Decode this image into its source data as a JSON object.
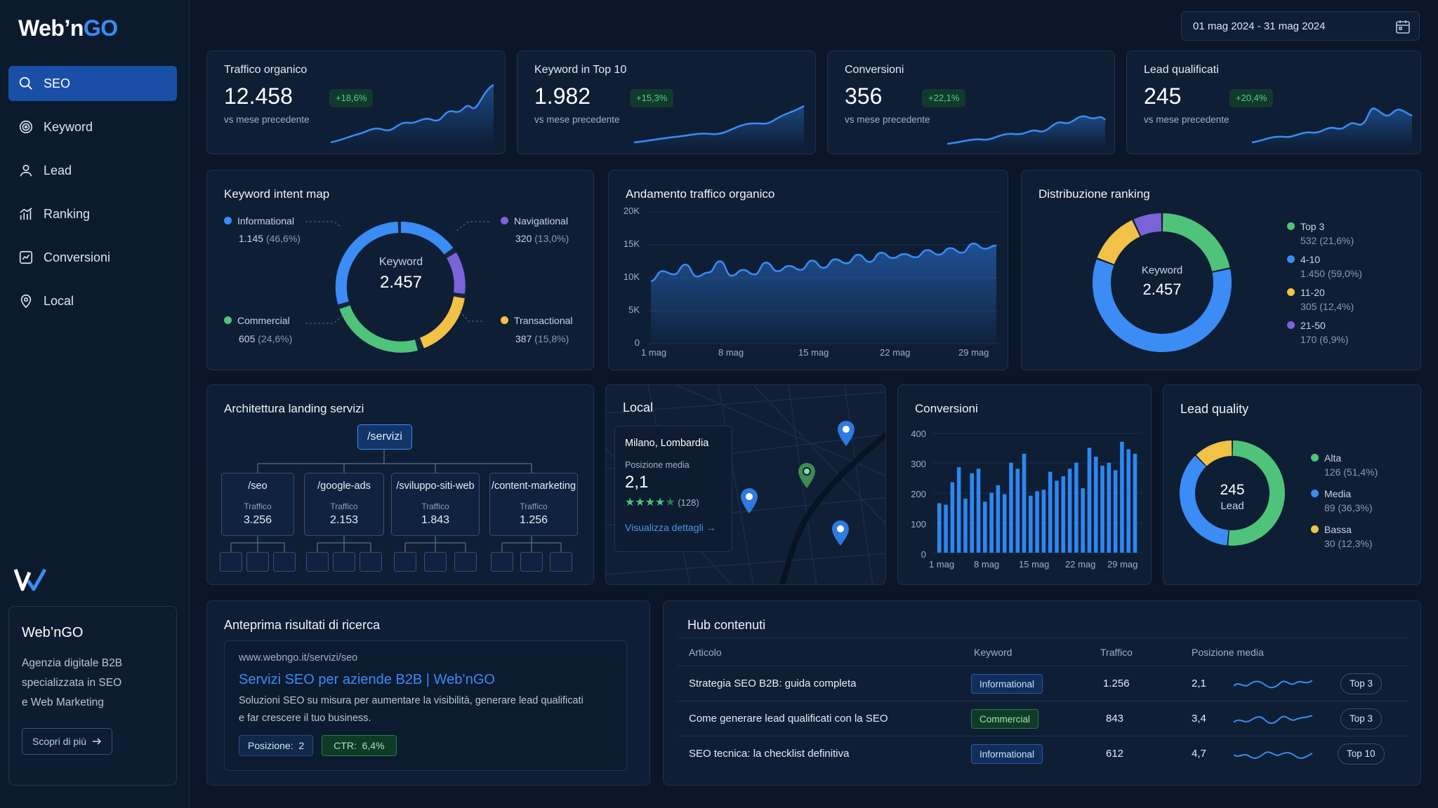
{
  "app": {
    "logo_main": "Web’n",
    "logo_accent": "GO"
  },
  "sidebar": {
    "items": [
      {
        "label": "SEO",
        "icon": "search-icon",
        "active": true
      },
      {
        "label": "Keyword",
        "icon": "target-icon"
      },
      {
        "label": "Lead",
        "icon": "user-icon"
      },
      {
        "label": "Ranking",
        "icon": "bar-chart-icon"
      },
      {
        "label": "Conversioni",
        "icon": "chart-box-icon"
      },
      {
        "label": "Local",
        "icon": "map-pin-icon"
      }
    ],
    "brand_title": "Web’nGO",
    "brand_desc": [
      "Agenzia digitale B2B",
      "specializzata in SEO",
      "e Web Marketing"
    ],
    "brand_button": "Scopri di più"
  },
  "date_range": "01 mag 2024 - 31 mag 2024",
  "kpis": [
    {
      "label": "Traffico organico",
      "value": "12.458",
      "delta": "+18,6%",
      "sub": "vs mese precedente"
    },
    {
      "label": "Keyword in Top 10",
      "value": "1.982",
      "delta": "+15,3%",
      "sub": "vs mese precedente"
    },
    {
      "label": "Conversioni",
      "value": "356",
      "delta": "+22,1%",
      "sub": "vs mese precedente"
    },
    {
      "label": "Lead qualificati",
      "value": "245",
      "delta": "+20,4%",
      "sub": "vs mese precedente"
    }
  ],
  "intent": {
    "title": "Keyword intent map",
    "center_label": "Keyword",
    "center_value": "2.457",
    "items": [
      {
        "name": "Informational",
        "value": "1.145",
        "pct": "(46,6%)",
        "color": "#3b8cf5"
      },
      {
        "name": "Navigational",
        "value": "320",
        "pct": "(13,0%)",
        "color": "#7a63d9"
      },
      {
        "name": "Commercial",
        "value": "605",
        "pct": "(24,6%)",
        "color": "#4fc37a"
      },
      {
        "name": "Transactional",
        "value": "387",
        "pct": "(15,8%)",
        "color": "#f1c246"
      }
    ]
  },
  "traffic": {
    "title": "Andamento traffico organico",
    "yticks": [
      "20K",
      "15K",
      "10K",
      "5K",
      "0"
    ],
    "xticks": [
      "1 mag",
      "8 mag",
      "15 mag",
      "22 mag",
      "29 mag"
    ]
  },
  "ranking": {
    "title": "Distribuzione ranking",
    "center_label": "Keyword",
    "center_value": "2.457",
    "items": [
      {
        "name": "Top 3",
        "detail": "532 (21,6%)",
        "color": "#4fc37a",
        "value": 532
      },
      {
        "name": "4-10",
        "detail": "1.450 (59,0%)",
        "color": "#3b8cf5",
        "value": 1450
      },
      {
        "name": "11-20",
        "detail": "305 (12,4%)",
        "color": "#f1c246",
        "value": 305
      },
      {
        "name": "21-50",
        "detail": "170 (6,9%)",
        "color": "#7a63d9",
        "value": 170
      }
    ]
  },
  "architecture": {
    "title": "Architettura landing servizi",
    "root": "/servizi",
    "children": [
      {
        "name": "/seo",
        "label": "Traffico",
        "value": "3.256"
      },
      {
        "name": "/google-ads",
        "label": "Traffico",
        "value": "2.153"
      },
      {
        "name": "/sviluppo-siti-web",
        "label": "Traffico",
        "value": "1.843"
      },
      {
        "name": "/content-marketing",
        "label": "Traffico",
        "value": "1.256"
      }
    ]
  },
  "local": {
    "title": "Local",
    "city": "Milano, Lombardia",
    "pos_label": "Posizione media",
    "pos_value": "2,1",
    "rating_count": "(128)",
    "rating": 4.5,
    "link": "Visualizza dettagli"
  },
  "conversions": {
    "title": "Conversioni",
    "yticks": [
      "400",
      "300",
      "200",
      "100",
      "0"
    ],
    "xticks": [
      "1 mag",
      "8 mag",
      "15 mag",
      "22 mag",
      "29 mag"
    ]
  },
  "chart_data": [
    {
      "type": "area",
      "title": "Andamento traffico organico",
      "ylim": [
        0,
        20000
      ],
      "x": [
        "1 mag",
        "2",
        "3",
        "4",
        "5",
        "6",
        "7",
        "8 mag",
        "9",
        "10",
        "11",
        "12",
        "13",
        "14",
        "15 mag",
        "16",
        "17",
        "18",
        "19",
        "20",
        "21",
        "22 mag",
        "23",
        "24",
        "25",
        "26",
        "27",
        "28",
        "29 mag",
        "30",
        "31"
      ],
      "values": [
        9500,
        11000,
        10500,
        12000,
        10200,
        10800,
        12500,
        10300,
        11200,
        10500,
        12300,
        11000,
        11800,
        11200,
        12600,
        11500,
        12800,
        12200,
        13500,
        12400,
        13800,
        13000,
        13600,
        13100,
        14200,
        13500,
        14500,
        13800,
        15200,
        14400,
        14900
      ]
    },
    {
      "type": "bar",
      "title": "Conversioni",
      "ylim": [
        0,
        400
      ],
      "x": [
        "1 mag",
        "2",
        "3",
        "4",
        "5",
        "6",
        "7",
        "8 mag",
        "9",
        "10",
        "11",
        "12",
        "13",
        "14",
        "15 mag",
        "16",
        "17",
        "18",
        "19",
        "20",
        "21",
        "22 mag",
        "23",
        "24",
        "25",
        "26",
        "27",
        "28",
        "29 mag",
        "30",
        "31"
      ],
      "values": [
        165,
        160,
        235,
        285,
        180,
        265,
        280,
        170,
        200,
        225,
        195,
        300,
        280,
        330,
        190,
        205,
        210,
        270,
        240,
        255,
        280,
        300,
        215,
        350,
        320,
        290,
        300,
        275,
        370,
        345,
        330
      ]
    }
  ],
  "lead_quality": {
    "title": "Lead quality",
    "center_value": "245",
    "center_label": "Lead",
    "items": [
      {
        "name": "Alta",
        "detail": "126 (51,4%)",
        "color": "#4fc37a",
        "value": 126
      },
      {
        "name": "Media",
        "detail": "89 (36,3%)",
        "color": "#3b8cf5",
        "value": 89
      },
      {
        "name": "Bassa",
        "detail": "30 (12,3%)",
        "color": "#f1c246",
        "value": 30
      }
    ]
  },
  "serp": {
    "title": "Anteprima risultati di ricerca",
    "url": "www.webngo.it/servizi/seo",
    "headline": "Servizi SEO per aziende B2B | Web’nGO",
    "desc1": "Soluzioni SEO su misura per aumentare la visibilità, generare lead qualificati",
    "desc2": "e far crescere il tuo business.",
    "pos_label": "Posizione:",
    "pos_value": "2",
    "ctr_label": "CTR:",
    "ctr_value": "6,4%"
  },
  "hub": {
    "title": "Hub contenuti",
    "columns": [
      "Articolo",
      "Keyword",
      "Traffico",
      "Posizione media"
    ],
    "rows": [
      {
        "article": "Strategia SEO B2B: guida completa",
        "keyword": "Informational",
        "kw_type": "info",
        "traffic": "1.256",
        "position": "2,1",
        "badge": "Top 3"
      },
      {
        "article": "Come generare lead qualificati con la SEO",
        "keyword": "Commercial",
        "kw_type": "comm",
        "traffic": "843",
        "position": "3,4",
        "badge": "Top 3"
      },
      {
        "article": "SEO tecnica: la checklist definitiva",
        "keyword": "Informational",
        "kw_type": "info",
        "traffic": "612",
        "position": "4,7",
        "badge": "Top 10"
      }
    ]
  }
}
